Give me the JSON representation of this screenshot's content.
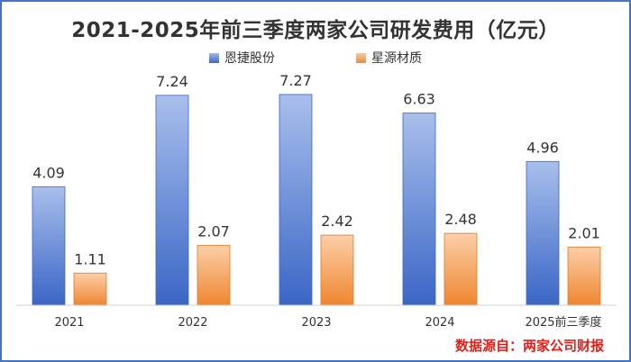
{
  "chart_data": {
    "type": "bar",
    "title": "2021-2025年前三季度两家公司研发费用（亿元）",
    "categories": [
      "2021",
      "2022",
      "2023",
      "2024",
      "2025前三季度"
    ],
    "series": [
      {
        "name": "恩捷股份",
        "values": [
          4.09,
          7.24,
          7.27,
          6.63,
          4.96
        ],
        "color": "#4472c4"
      },
      {
        "name": "星源材质",
        "values": [
          1.11,
          2.07,
          2.42,
          2.48,
          2.01
        ],
        "color": "#ed7d31"
      }
    ],
    "ylim": [
      0,
      8
    ],
    "grid": false,
    "legend": "top-center",
    "source": "数据源自：两家公司财报"
  }
}
